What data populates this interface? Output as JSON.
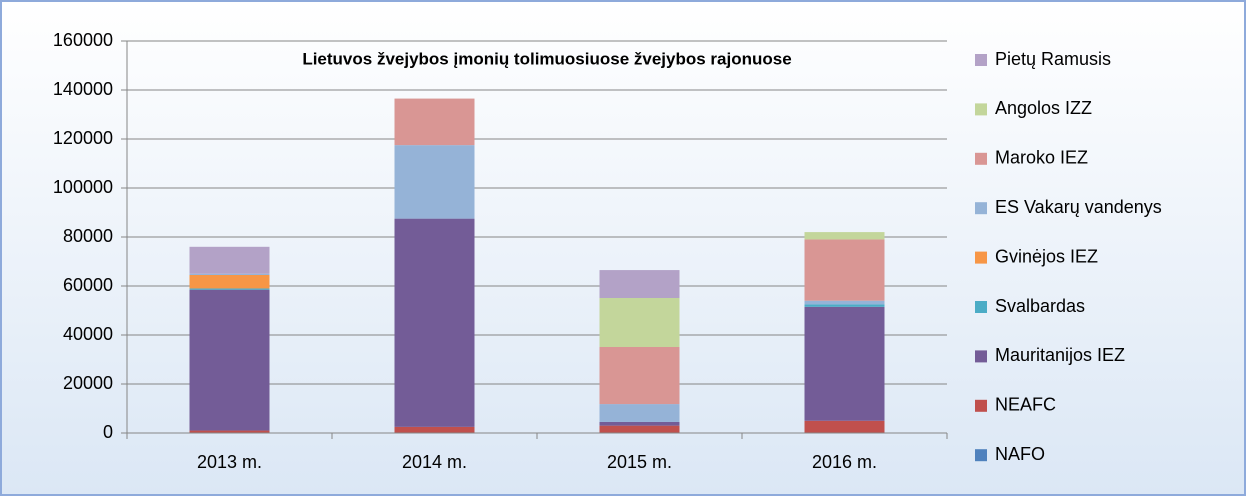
{
  "chart_data": {
    "type": "stacked_bar",
    "title": "Lietuvos žvejybos įmonių tolimuosiuose žvejybos rajonuose",
    "categories": [
      "2013 m.",
      "2014 m.",
      "2015 m.",
      "2016 m."
    ],
    "series": [
      {
        "name": "NAFO",
        "color": "#4f81bd",
        "values": [
          0,
          0,
          0,
          0
        ]
      },
      {
        "name": "NEAFC",
        "color": "#c0504d",
        "values": [
          1000,
          2500,
          3000,
          5000
        ]
      },
      {
        "name": "Mauritanijos IEZ",
        "color": "#735c97",
        "values": [
          57500,
          85000,
          1500,
          46500
        ]
      },
      {
        "name": "Svalbardas",
        "color": "#4bacc6",
        "values": [
          500,
          0,
          0,
          1000
        ]
      },
      {
        "name": "Gvinėjos IEZ",
        "color": "#f79646",
        "values": [
          5500,
          0,
          0,
          0
        ]
      },
      {
        "name": "ES Vakarų vandenys",
        "color": "#95b3d7",
        "values": [
          500,
          30000,
          7300,
          1500
        ]
      },
      {
        "name": "Maroko IEZ",
        "color": "#d99694",
        "values": [
          0,
          19000,
          23300,
          25000
        ]
      },
      {
        "name": "Angolos IZZ",
        "color": "#c3d69b",
        "values": [
          0,
          0,
          20000,
          3000
        ]
      },
      {
        "name": "Pietų Ramusis",
        "color": "#b3a2c7",
        "values": [
          11000,
          0,
          11400,
          0
        ]
      }
    ],
    "ylim": [
      0,
      160000
    ],
    "yticks": [
      0,
      20000,
      40000,
      60000,
      80000,
      100000,
      120000,
      140000,
      160000
    ],
    "grid": true,
    "legend": "right"
  }
}
